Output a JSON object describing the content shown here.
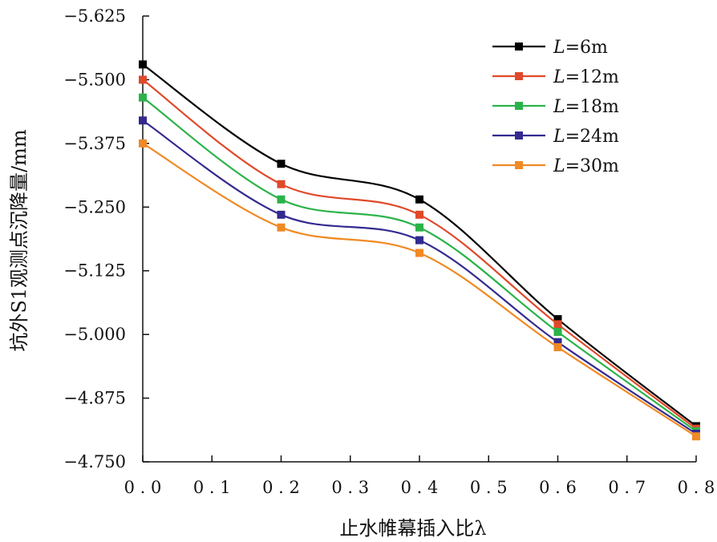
{
  "chart_data": {
    "type": "line",
    "xlabel": "止水帷幕插入比λ",
    "ylabel": "坑外S1观测点沉降量/mm",
    "x": [
      0.0,
      0.2,
      0.4,
      0.6,
      0.8
    ],
    "xlim": [
      0.0,
      0.8
    ],
    "xticks": [
      "0.0",
      "0.1",
      "0.2",
      "0.3",
      "0.4",
      "0.5",
      "0.6",
      "0.7",
      "0.8"
    ],
    "ylim": [
      -4.75,
      -5.625
    ],
    "y_axis_reversed": true,
    "yticks": [
      "-5.625",
      "-5.500",
      "-5.375",
      "-5.250",
      "-5.125",
      "-5.000",
      "-4.875",
      "-4.750"
    ],
    "grid": false,
    "legend_position": "top-right",
    "series": [
      {
        "name": "L=6m",
        "legend_var": "L",
        "legend_rest": "=6m",
        "color": "#000000",
        "values": [
          -5.53,
          -5.335,
          -5.265,
          -5.03,
          -4.82
        ]
      },
      {
        "name": "L=12m",
        "legend_var": "L",
        "legend_rest": "=12m",
        "color": "#e0492a",
        "values": [
          -5.5,
          -5.295,
          -5.235,
          -5.02,
          -4.815
        ]
      },
      {
        "name": "L=18m",
        "legend_var": "L",
        "legend_rest": "=18m",
        "color": "#2bb34a",
        "values": [
          -5.465,
          -5.265,
          -5.21,
          -5.005,
          -4.81
        ]
      },
      {
        "name": "L=24m",
        "legend_var": "L",
        "legend_rest": "=24m",
        "color": "#332a8f",
        "values": [
          -5.42,
          -5.235,
          -5.185,
          -4.985,
          -4.805
        ]
      },
      {
        "name": "L=30m",
        "legend_var": "L",
        "legend_rest": "=30m",
        "color": "#f08a24",
        "values": [
          -5.375,
          -5.21,
          -5.16,
          -4.975,
          -4.8
        ]
      }
    ]
  }
}
